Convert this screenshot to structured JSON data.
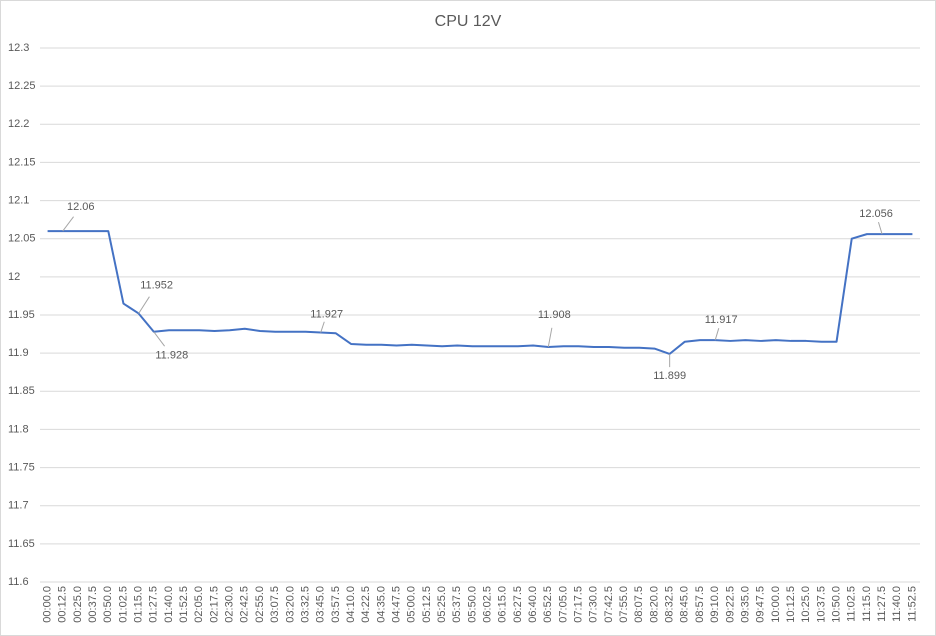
{
  "chart_data": {
    "type": "line",
    "title": "CPU 12V",
    "categories": [
      "00:00.0",
      "00:12.5",
      "00:25.0",
      "00:37.5",
      "00:50.0",
      "01:02.5",
      "01:15.0",
      "01:27.5",
      "01:40.0",
      "01:52.5",
      "02:05.0",
      "02:17.5",
      "02:30.0",
      "02:42.5",
      "02:55.0",
      "03:07.5",
      "03:20.0",
      "03:32.5",
      "03:45.0",
      "03:57.5",
      "04:10.0",
      "04:22.5",
      "04:35.0",
      "04:47.5",
      "05:00.0",
      "05:12.5",
      "05:25.0",
      "05:37.5",
      "05:50.0",
      "06:02.5",
      "06:15.0",
      "06:27.5",
      "06:40.0",
      "06:52.5",
      "07:05.0",
      "07:17.5",
      "07:30.0",
      "07:42.5",
      "07:55.0",
      "08:07.5",
      "08:20.0",
      "08:32.5",
      "08:45.0",
      "08:57.5",
      "09:10.0",
      "09:22.5",
      "09:35.0",
      "09:47.5",
      "10:00.0",
      "10:12.5",
      "10:25.0",
      "10:37.5",
      "10:50.0",
      "11:02.5",
      "11:15.0",
      "11:27.5",
      "11:40.0",
      "11:52.5"
    ],
    "series": [
      {
        "name": "CPU 12V",
        "color": "#4472c4",
        "values": [
          12.06,
          12.06,
          12.06,
          12.06,
          12.06,
          11.965,
          11.952,
          11.928,
          11.93,
          11.93,
          11.93,
          11.929,
          11.93,
          11.932,
          11.929,
          11.928,
          11.928,
          11.928,
          11.927,
          11.926,
          11.912,
          11.911,
          11.911,
          11.91,
          11.911,
          11.91,
          11.909,
          11.91,
          11.909,
          11.909,
          11.909,
          11.909,
          11.91,
          11.908,
          11.909,
          11.909,
          11.908,
          11.908,
          11.907,
          11.907,
          11.906,
          11.899,
          11.915,
          11.917,
          11.917,
          11.916,
          11.917,
          11.916,
          11.917,
          11.916,
          11.916,
          11.915,
          11.915,
          12.05,
          12.056,
          12.056,
          12.056,
          12.056
        ],
        "value_labels": [
          null,
          "12.06",
          null,
          null,
          null,
          null,
          "11.952",
          "11.928",
          null,
          null,
          null,
          null,
          null,
          null,
          null,
          null,
          null,
          null,
          "11.927",
          null,
          null,
          null,
          null,
          null,
          null,
          null,
          null,
          null,
          null,
          null,
          null,
          null,
          null,
          "11.908",
          null,
          null,
          null,
          null,
          null,
          null,
          null,
          "11.899",
          null,
          null,
          "11.917",
          null,
          null,
          null,
          null,
          null,
          null,
          null,
          null,
          null,
          null,
          "12.056",
          null,
          null
        ]
      }
    ],
    "ylim": [
      11.6,
      12.3
    ],
    "yticks": [
      11.6,
      11.65,
      11.7,
      11.75,
      11.8,
      11.85,
      11.9,
      11.95,
      12,
      12.05,
      12.1,
      12.15,
      12.2,
      12.25,
      12.3
    ],
    "grid": true
  }
}
